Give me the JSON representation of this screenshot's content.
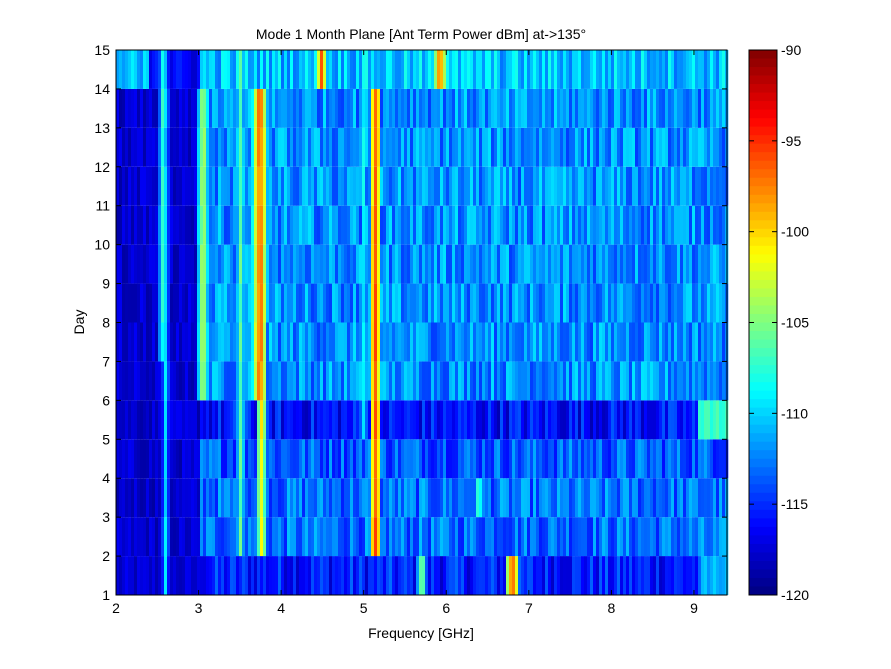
{
  "chart_data": {
    "type": "heatmap",
    "title": "Mode 1 Month Plane [Ant Term Power dBm] at->135°",
    "xlabel": "Frequency [GHz]",
    "ylabel": "Day",
    "xlim": [
      2,
      9.4
    ],
    "ylim": [
      1,
      15
    ],
    "x_ticks": [
      "2",
      "3",
      "4",
      "5",
      "6",
      "7",
      "8",
      "9"
    ],
    "y_ticks": [
      "1",
      "2",
      "3",
      "4",
      "5",
      "6",
      "7",
      "8",
      "9",
      "10",
      "11",
      "12",
      "13",
      "14",
      "15"
    ],
    "colorbar": {
      "label_ticks": [
        "-90",
        "-95",
        "-100",
        "-105",
        "-110",
        "-115",
        "-120"
      ],
      "range": [
        -120,
        -90
      ],
      "colormap": "jet"
    },
    "rows": [
      {
        "day_start": 1,
        "day_end": 2,
        "base_from_3ghz": -115.5,
        "extra_cutoff_ghz": 9.1,
        "extra_level": -111
      },
      {
        "day_start": 2,
        "day_end": 3,
        "base_from_3ghz": -113
      },
      {
        "day_start": 3,
        "day_end": 4,
        "base_from_3ghz": -113
      },
      {
        "day_start": 4,
        "day_end": 5,
        "base_from_3ghz": -113.5
      },
      {
        "day_start": 5,
        "day_end": 6,
        "base_from_3ghz": -116,
        "extra_cutoff_ghz": 9.05,
        "extra_level": -107
      },
      {
        "day_start": 6,
        "day_end": 7,
        "base_from_3ghz": -112
      },
      {
        "day_start": 7,
        "day_end": 8,
        "base_from_3ghz": -112
      },
      {
        "day_start": 8,
        "day_end": 9,
        "base_from_3ghz": -112
      },
      {
        "day_start": 9,
        "day_end": 10,
        "base_from_3ghz": -112
      },
      {
        "day_start": 10,
        "day_end": 11,
        "base_from_3ghz": -112
      },
      {
        "day_start": 11,
        "day_end": 12,
        "base_from_3ghz": -112
      },
      {
        "day_start": 12,
        "day_end": 13,
        "base_from_3ghz": -112
      },
      {
        "day_start": 13,
        "day_end": 14,
        "base_from_3ghz": -112
      },
      {
        "day_start": 14,
        "day_end": 15,
        "base_from_3ghz": -110.5
      }
    ],
    "low_band": {
      "x_start": 2,
      "x_end": 3,
      "level": -119
    },
    "spectral_lines": [
      {
        "freq_ghz": 2.57,
        "level": -108,
        "days": [
          7,
          15
        ]
      },
      {
        "freq_ghz": 2.6,
        "level": -110,
        "days": [
          1,
          15
        ]
      },
      {
        "freq_ghz": 3.05,
        "level": -105,
        "days": [
          6,
          14
        ]
      },
      {
        "freq_ghz": 3.5,
        "level": -106,
        "days": [
          2,
          15
        ]
      },
      {
        "freq_ghz": 3.68,
        "level": -104,
        "days": [
          6,
          14
        ]
      },
      {
        "freq_ghz": 3.74,
        "level": -98,
        "days": [
          6,
          14
        ]
      },
      {
        "freq_ghz": 3.77,
        "level": -101,
        "days": [
          2,
          14
        ]
      },
      {
        "freq_ghz": 4.5,
        "level": -97,
        "days": [
          14,
          15
        ]
      },
      {
        "freq_ghz": 5.0,
        "level": -109,
        "days": [
          5,
          15
        ]
      },
      {
        "freq_ghz": 5.15,
        "level": -96,
        "days": [
          2,
          14
        ]
      },
      {
        "freq_ghz": 5.92,
        "level": -99,
        "days": [
          14,
          15
        ]
      },
      {
        "freq_ghz": 5.96,
        "level": -103,
        "days": [
          14,
          15
        ]
      },
      {
        "freq_ghz": 5.7,
        "level": -106,
        "days": [
          1,
          2
        ]
      },
      {
        "freq_ghz": 6.78,
        "level": -99,
        "days": [
          1,
          2
        ]
      },
      {
        "freq_ghz": 6.82,
        "level": -97,
        "days": [
          1,
          2
        ]
      },
      {
        "freq_ghz": 6.4,
        "level": -108,
        "days": [
          3,
          4
        ]
      }
    ]
  }
}
